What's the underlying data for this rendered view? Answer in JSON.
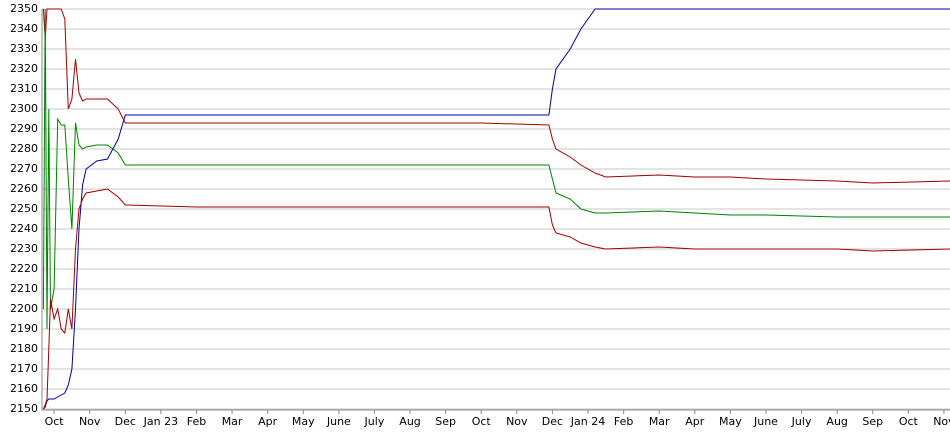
{
  "chart_data": {
    "type": "line",
    "x": [
      -0.3,
      -0.25,
      -0.2,
      -0.15,
      -0.1,
      0,
      0.1,
      0.2,
      0.3,
      0.4,
      0.5,
      0.6,
      0.7,
      0.8,
      0.9,
      1.2,
      1.5,
      1.8,
      2.0,
      4,
      6,
      8,
      10,
      12,
      13.9,
      14.0,
      14.1,
      14.5,
      14.8,
      15.2,
      15.5,
      17,
      18,
      19,
      20,
      22,
      23,
      25.17
    ],
    "series": [
      {
        "color": "#0000a0",
        "values": [
          2150,
          2151,
          2154,
          2155,
          2155,
          2155,
          2156,
          2157,
          2158,
          2162,
          2170,
          2200,
          2240,
          2262,
          2270,
          2274,
          2275,
          2285,
          2297,
          2297,
          2297,
          2297,
          2297,
          2297,
          2297,
          2310,
          2320,
          2330,
          2340,
          2350,
          2350,
          2350,
          2350,
          2350,
          2350,
          2350,
          2350,
          2350
        ]
      },
      {
        "color": "#a00000",
        "values": [
          2350,
          2335,
          2350,
          2350,
          2350,
          2350,
          2350,
          2350,
          2345,
          2300,
          2305,
          2325,
          2308,
          2304,
          2305,
          2305,
          2305,
          2300,
          2293,
          2293,
          2293,
          2293,
          2293,
          2293,
          2292,
          2285,
          2280,
          2276,
          2272,
          2268,
          2266,
          2267,
          2266,
          2266,
          2265,
          2264,
          2263,
          2264
        ]
      },
      {
        "color": "#008000",
        "values": [
          2200,
          2350,
          2190,
          2300,
          2200,
          2210,
          2295,
          2292,
          2292,
          2265,
          2240,
          2293,
          2282,
          2280,
          2281,
          2282,
          2282,
          2278,
          2272,
          2272,
          2272,
          2272,
          2272,
          2272,
          2272,
          2265,
          2258,
          2255,
          2250,
          2248,
          2248,
          2249,
          2248,
          2247,
          2247,
          2246,
          2246,
          2246
        ]
      },
      {
        "color": "#a00000",
        "values": [
          2150,
          2152,
          2155,
          2180,
          2205,
          2195,
          2200,
          2190,
          2188,
          2200,
          2190,
          2230,
          2250,
          2255,
          2258,
          2259,
          2260,
          2256,
          2252,
          2251,
          2251,
          2251,
          2251,
          2251,
          2251,
          2242,
          2238,
          2236,
          2233,
          2231,
          2230,
          2231,
          2230,
          2230,
          2230,
          2230,
          2229,
          2230
        ]
      }
    ],
    "xlim": [
      -0.34,
      25.17
    ],
    "xticks": [
      {
        "value": 0,
        "label": "Oct"
      },
      {
        "value": 1,
        "label": "Nov"
      },
      {
        "value": 2,
        "label": "Dec"
      },
      {
        "value": 3,
        "label": "Jan 23"
      },
      {
        "value": 4,
        "label": "Feb"
      },
      {
        "value": 5,
        "label": "Mar"
      },
      {
        "value": 6,
        "label": "Apr"
      },
      {
        "value": 7,
        "label": "May"
      },
      {
        "value": 8,
        "label": "June"
      },
      {
        "value": 9,
        "label": "July"
      },
      {
        "value": 10,
        "label": "Aug"
      },
      {
        "value": 11,
        "label": "Sep"
      },
      {
        "value": 12,
        "label": "Oct"
      },
      {
        "value": 13,
        "label": "Nov"
      },
      {
        "value": 14,
        "label": "Dec"
      },
      {
        "value": 15,
        "label": "Jan 24"
      },
      {
        "value": 16,
        "label": "Feb"
      },
      {
        "value": 17,
        "label": "Mar"
      },
      {
        "value": 18,
        "label": "Apr"
      },
      {
        "value": 19,
        "label": "May"
      },
      {
        "value": 20,
        "label": "June"
      },
      {
        "value": 21,
        "label": "July"
      },
      {
        "value": 22,
        "label": "Aug"
      },
      {
        "value": 23,
        "label": "Sep"
      },
      {
        "value": 24,
        "label": "Oct"
      },
      {
        "value": 25,
        "label": "Nov"
      }
    ],
    "ylim": [
      2150,
      2350
    ],
    "yticks": [
      2150,
      2160,
      2170,
      2180,
      2190,
      2200,
      2210,
      2220,
      2230,
      2240,
      2250,
      2260,
      2270,
      2280,
      2290,
      2300,
      2310,
      2320,
      2330,
      2340,
      2350
    ],
    "grid": true
  }
}
